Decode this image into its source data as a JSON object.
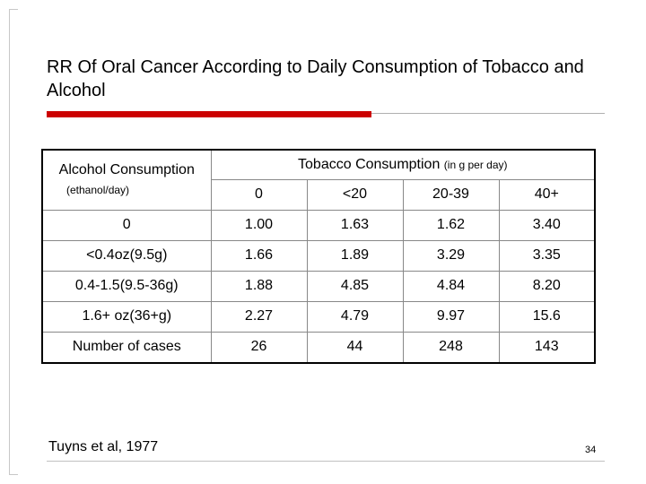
{
  "slide": {
    "title": "RR Of Oral Cancer According to Daily Consumption of Tobacco and Alcohol",
    "citation": "Tuyns et al, 1977",
    "slide_number": "34"
  },
  "table": {
    "alcohol_header": "Alcohol Consumption",
    "alcohol_unit": "(ethanol/day)",
    "tobacco_header": "Tobacco Consumption",
    "tobacco_unit": "(in g per day)",
    "tobacco_levels": [
      "0",
      "<20",
      "20-39",
      "40+"
    ],
    "rows": [
      {
        "label": "0",
        "values": [
          "1.00",
          "1.63",
          "1.62",
          "3.40"
        ]
      },
      {
        "label": "<0.4oz(9.5g)",
        "values": [
          "1.66",
          "1.89",
          "3.29",
          "3.35"
        ]
      },
      {
        "label": "0.4-1.5(9.5-36g)",
        "values": [
          "1.88",
          "4.85",
          "4.84",
          "8.20"
        ]
      },
      {
        "label": "1.6+ oz(36+g)",
        "values": [
          "2.27",
          "4.79",
          "9.97",
          "15.6"
        ]
      }
    ],
    "cases_label": "Number of cases",
    "cases": [
      "26",
      "44",
      "248",
      "143"
    ]
  }
}
